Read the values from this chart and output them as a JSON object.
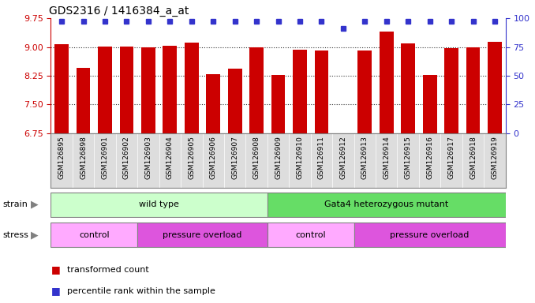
{
  "title": "GDS2316 / 1416384_a_at",
  "samples": [
    "GSM126895",
    "GSM126898",
    "GSM126901",
    "GSM126902",
    "GSM126903",
    "GSM126904",
    "GSM126905",
    "GSM126906",
    "GSM126907",
    "GSM126908",
    "GSM126909",
    "GSM126910",
    "GSM126911",
    "GSM126912",
    "GSM126913",
    "GSM126914",
    "GSM126915",
    "GSM126916",
    "GSM126917",
    "GSM126918",
    "GSM126919"
  ],
  "bar_values": [
    9.07,
    8.45,
    9.01,
    9.01,
    9.0,
    9.04,
    9.11,
    8.3,
    8.44,
    9.0,
    8.28,
    8.92,
    8.9,
    6.75,
    8.9,
    9.4,
    9.09,
    8.28,
    8.97,
    9.0,
    9.13
  ],
  "percentile_values": [
    97,
    97,
    97,
    97,
    97,
    97,
    97,
    97,
    97,
    97,
    97,
    97,
    97,
    91,
    97,
    97,
    97,
    97,
    97,
    97,
    97
  ],
  "ylim_left": [
    6.75,
    9.75
  ],
  "ylim_right": [
    0,
    100
  ],
  "yticks_left": [
    6.75,
    7.5,
    8.25,
    9.0,
    9.75
  ],
  "yticks_right": [
    0,
    25,
    50,
    75,
    100
  ],
  "bar_color": "#cc0000",
  "percentile_color": "#3333cc",
  "background_color": "#ffffff",
  "strain_labels": [
    "wild type",
    "Gata4 heterozygous mutant"
  ],
  "strain_ranges": [
    [
      0,
      10
    ],
    [
      10,
      21
    ]
  ],
  "strain_colors": [
    "#ccffcc",
    "#66dd66"
  ],
  "stress_labels": [
    "control",
    "pressure overload",
    "control",
    "pressure overload"
  ],
  "stress_ranges": [
    [
      0,
      4
    ],
    [
      4,
      10
    ],
    [
      10,
      14
    ],
    [
      14,
      21
    ]
  ],
  "stress_colors": [
    "#ffaaff",
    "#dd55dd",
    "#ffaaff",
    "#dd55dd"
  ],
  "xticklabel_bg": "#dddddd",
  "legend_items": [
    {
      "label": "transformed count",
      "color": "#cc0000"
    },
    {
      "label": "percentile rank within the sample",
      "color": "#3333cc"
    }
  ]
}
